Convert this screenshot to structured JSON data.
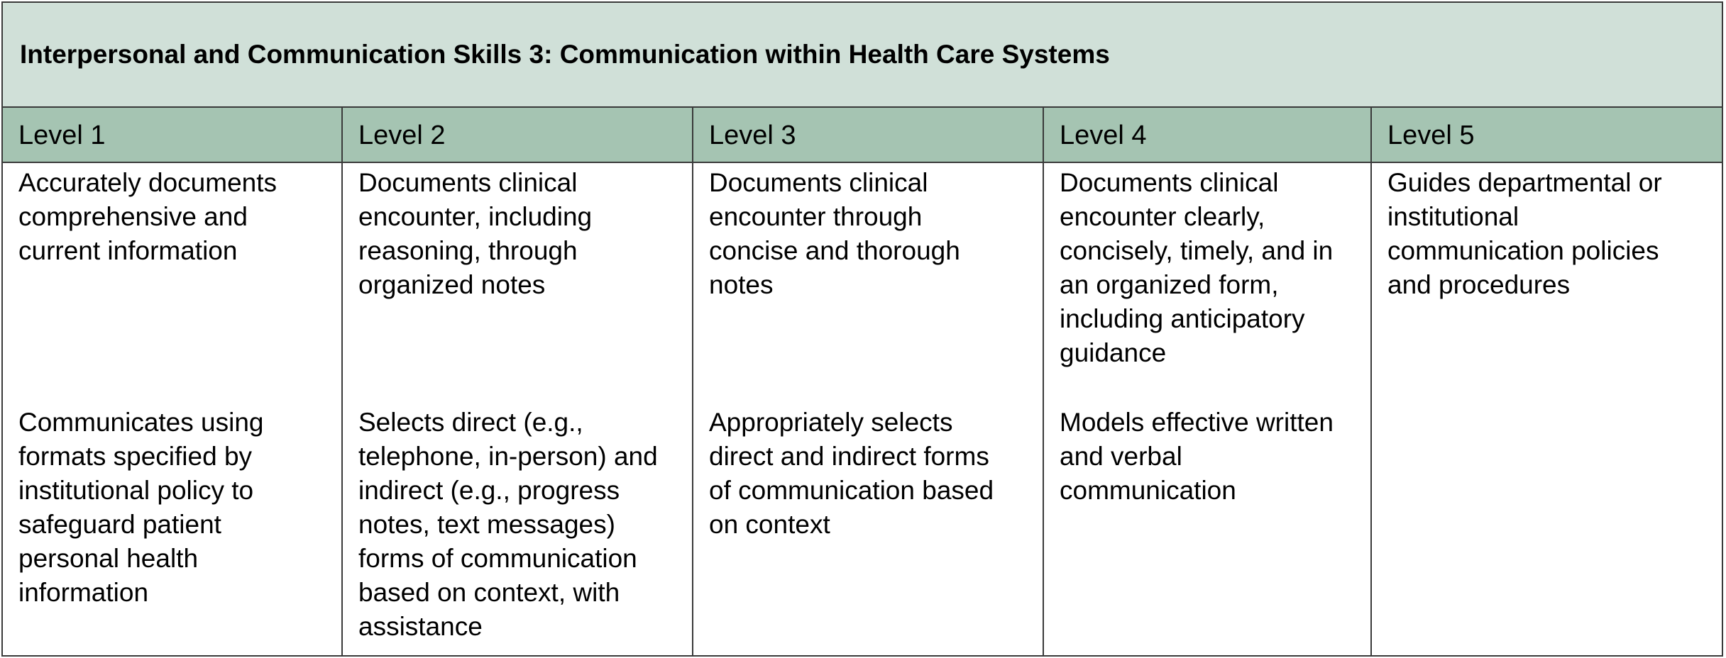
{
  "title": "Interpersonal and Communication Skills 3: Communication within Health Care Systems",
  "columns": [
    "Level 1",
    "Level 2",
    "Level 3",
    "Level 4",
    "Level 5"
  ],
  "rows": [
    [
      [
        "Accurately documents",
        "comprehensive and",
        "current information"
      ],
      [
        "Documents clinical",
        "encounter, including",
        "reasoning, through",
        "organized notes"
      ],
      [
        "Documents clinical",
        "encounter through",
        "concise and thorough",
        "notes"
      ],
      [
        "Documents clinical",
        "encounter clearly,",
        "concisely, timely, and in",
        "an organized form,",
        "including anticipatory",
        "guidance"
      ],
      [
        "Guides departmental or",
        "institutional",
        "communication policies",
        "and procedures"
      ]
    ],
    [
      [
        "Communicates using",
        "formats specified by",
        "institutional policy to",
        "safeguard patient",
        "personal health",
        "information"
      ],
      [
        "Selects direct (e.g.,",
        "telephone, in-person) and",
        "indirect (e.g., progress",
        "notes, text messages)",
        "forms of communication",
        "based on context, with",
        "assistance"
      ],
      [
        "Appropriately selects",
        "direct and indirect forms",
        "of communication based",
        "on context"
      ],
      [
        "Models effective written",
        "and verbal",
        "communication"
      ],
      []
    ]
  ]
}
